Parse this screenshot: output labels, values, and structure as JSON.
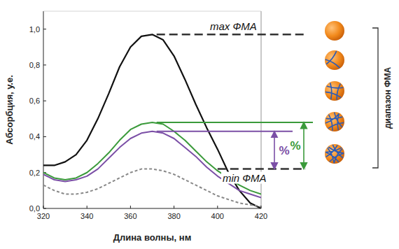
{
  "chart_data": {
    "type": "line",
    "x_label": "Длина волны, нм",
    "y_label": "Абсорбция, у.е.",
    "x": [
      320,
      325,
      330,
      335,
      340,
      345,
      350,
      355,
      360,
      365,
      370,
      375,
      380,
      385,
      390,
      395,
      400,
      405,
      410,
      415,
      420
    ],
    "series": [
      {
        "color": "#111111",
        "line_style": "solid",
        "values": [
          0.24,
          0.24,
          0.26,
          0.3,
          0.38,
          0.5,
          0.64,
          0.79,
          0.9,
          0.96,
          0.97,
          0.94,
          0.85,
          0.72,
          0.58,
          0.45,
          0.33,
          0.2,
          0.1,
          0.03,
          0.0
        ]
      },
      {
        "color": "#3a9a3a",
        "line_style": "solid",
        "values": [
          0.2,
          0.17,
          0.16,
          0.17,
          0.2,
          0.25,
          0.31,
          0.38,
          0.44,
          0.47,
          0.48,
          0.47,
          0.43,
          0.38,
          0.32,
          0.26,
          0.21,
          0.17,
          0.13,
          0.1,
          0.08
        ]
      },
      {
        "color": "#7b4fa6",
        "line_style": "solid",
        "values": [
          0.19,
          0.16,
          0.15,
          0.16,
          0.18,
          0.22,
          0.28,
          0.34,
          0.39,
          0.42,
          0.43,
          0.42,
          0.39,
          0.34,
          0.29,
          0.23,
          0.18,
          0.14,
          0.1,
          0.08,
          0.06
        ]
      },
      {
        "color": "#888888",
        "line_style": "dashed",
        "values": [
          0.13,
          0.1,
          0.08,
          0.08,
          0.09,
          0.11,
          0.14,
          0.17,
          0.2,
          0.22,
          0.22,
          0.21,
          0.19,
          0.16,
          0.13,
          0.1,
          0.07,
          0.05,
          0.03,
          0.02,
          0.01
        ]
      }
    ],
    "xlim": [
      320,
      420
    ],
    "xticks": [
      320,
      340,
      360,
      380,
      400,
      420
    ],
    "ylim": [
      0,
      1.1
    ],
    "yticks": [
      {
        "value": 0.0,
        "label": "0,0"
      },
      {
        "value": 0.2,
        "label": "0,2"
      },
      {
        "value": 0.4,
        "label": "0,4"
      },
      {
        "value": 0.6,
        "label": "0,6"
      },
      {
        "value": 0.8,
        "label": "0,8"
      },
      {
        "value": 1.0,
        "label": "1,0"
      }
    ],
    "grid": false,
    "annotations": [
      {
        "text": "max ФМА",
        "y": 0.97,
        "line_style": "dashed",
        "color": "#333333"
      },
      {
        "text": "min ФМА",
        "y": 0.22,
        "line_style": "dashed",
        "color": "#333333"
      },
      {
        "text": "%",
        "y_from": 0.22,
        "y_to": 0.43,
        "color": "#7b4fa6"
      },
      {
        "text": "%",
        "y_from": 0.22,
        "y_to": 0.48,
        "color": "#3a9a3a"
      }
    ],
    "range_label": "диапазон ФМА"
  }
}
